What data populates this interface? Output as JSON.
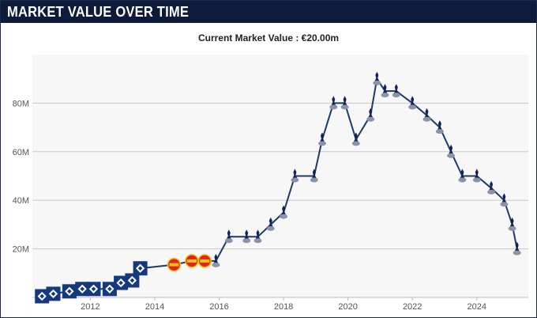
{
  "header": {
    "title": "MARKET VALUE OVER TIME"
  },
  "subtitle": "Current Market Value : €20.00m",
  "colors": {
    "header_bg": "#0d1a3a",
    "line": "#1f3b64",
    "plot_bg": "#f7f7f7",
    "grid": "#c8c8c8",
    "club_hsv": "#16397b",
    "club_leverkusen": "#e32221",
    "club_tottenham": "#132257"
  },
  "chart_data": {
    "type": "line",
    "title": "Current Market Value : €20.00m",
    "xlabel": "",
    "ylabel": "",
    "xlim": [
      2010.2,
      2025.6
    ],
    "ylim": [
      0,
      100
    ],
    "x_ticks": [
      2012,
      2014,
      2016,
      2018,
      2020,
      2022,
      2024
    ],
    "x_tick_labels": [
      "2012",
      "2014",
      "2016",
      "2018",
      "2020",
      "2022",
      "2024"
    ],
    "y_ticks": [
      20,
      40,
      60,
      80
    ],
    "y_tick_labels": [
      "20M",
      "40M",
      "60M",
      "80M"
    ],
    "grid": true,
    "legend": "none",
    "series": [
      {
        "x": [
          2010.5,
          2010.85,
          2011.35,
          2011.75,
          2012.1,
          2012.6,
          2012.95,
          2013.3,
          2013.55,
          2014.6,
          2015.15,
          2015.55,
          2015.9,
          2016.3,
          2016.85,
          2017.2,
          2017.6,
          2018.0,
          2018.35,
          2018.95,
          2019.2,
          2019.55,
          2019.9,
          2020.25,
          2020.7,
          2020.9,
          2021.15,
          2021.5,
          2022.0,
          2022.45,
          2022.85,
          2023.2,
          2023.55,
          2024.0,
          2024.45,
          2024.85,
          2025.1,
          2025.25
        ],
        "values": [
          0.5,
          1.5,
          2.5,
          3.5,
          3.5,
          3.5,
          6.0,
          7.0,
          12.0,
          13.5,
          15.0,
          15.0,
          15.0,
          25.0,
          25.0,
          25.0,
          30.0,
          35.0,
          50.0,
          50.0,
          65.0,
          80.0,
          80.0,
          65.0,
          75.0,
          90.0,
          85.0,
          85.0,
          80.0,
          75.0,
          70.0,
          60.0,
          50.0,
          50.0,
          45.0,
          40.0,
          30.0,
          20.0
        ],
        "clubs": [
          "Hamburger SV",
          "Hamburger SV",
          "Hamburger SV",
          "Hamburger SV",
          "Hamburger SV",
          "Hamburger SV",
          "Hamburger SV",
          "Hamburger SV",
          "Hamburger SV",
          "Bayer 04 Leverkusen",
          "Bayer 04 Leverkusen",
          "Bayer 04 Leverkusen",
          "Tottenham Hotspur",
          "Tottenham Hotspur",
          "Tottenham Hotspur",
          "Tottenham Hotspur",
          "Tottenham Hotspur",
          "Tottenham Hotspur",
          "Tottenham Hotspur",
          "Tottenham Hotspur",
          "Tottenham Hotspur",
          "Tottenham Hotspur",
          "Tottenham Hotspur",
          "Tottenham Hotspur",
          "Tottenham Hotspur",
          "Tottenham Hotspur",
          "Tottenham Hotspur",
          "Tottenham Hotspur",
          "Tottenham Hotspur",
          "Tottenham Hotspur",
          "Tottenham Hotspur",
          "Tottenham Hotspur",
          "Tottenham Hotspur",
          "Tottenham Hotspur",
          "Tottenham Hotspur",
          "Tottenham Hotspur",
          "Tottenham Hotspur",
          "Tottenham Hotspur"
        ]
      }
    ]
  }
}
